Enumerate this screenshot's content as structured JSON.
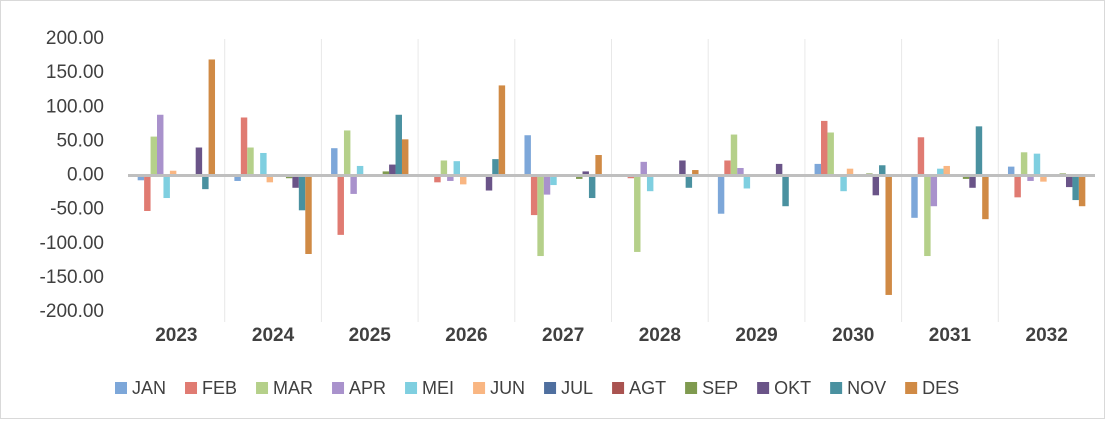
{
  "chart_data": {
    "type": "bar",
    "categories": [
      "2023",
      "2024",
      "2025",
      "2026",
      "2027",
      "2028",
      "2029",
      "2030",
      "2031",
      "2032"
    ],
    "series": [
      {
        "name": "JAN",
        "color": "#7da7d9",
        "values": [
          -7,
          -8,
          40,
          0,
          59,
          0,
          -56,
          17,
          -62,
          13
        ]
      },
      {
        "name": "FEB",
        "color": "#e07b72",
        "values": [
          -52,
          85,
          -87,
          -10,
          -58,
          -4,
          22,
          80,
          56,
          -32
        ]
      },
      {
        "name": "MAR",
        "color": "#b5d08a",
        "values": [
          57,
          41,
          66,
          22,
          -118,
          -112,
          60,
          63,
          -118,
          34
        ]
      },
      {
        "name": "APR",
        "color": "#a992cc",
        "values": [
          89,
          0,
          -27,
          -8,
          -28,
          20,
          11,
          0,
          -45,
          -8
        ]
      },
      {
        "name": "MEI",
        "color": "#7fcfe0",
        "values": [
          -33,
          33,
          14,
          21,
          -14,
          -23,
          -19,
          -23,
          10,
          32
        ]
      },
      {
        "name": "JUN",
        "color": "#f9b682",
        "values": [
          7,
          -10,
          0,
          -13,
          0,
          0,
          0,
          10,
          14,
          -9
        ]
      },
      {
        "name": "JUL",
        "color": "#4f6f9f",
        "values": [
          0,
          0,
          0,
          0,
          0,
          0,
          0,
          0,
          0,
          0
        ]
      },
      {
        "name": "AGT",
        "color": "#a95350",
        "values": [
          0,
          0,
          0,
          0,
          0,
          0,
          0,
          0,
          0,
          0
        ]
      },
      {
        "name": "SEP",
        "color": "#7f9a4f",
        "values": [
          0,
          -4,
          6,
          0,
          -5,
          0,
          0,
          3,
          -5,
          3
        ]
      },
      {
        "name": "OKT",
        "color": "#6a5488",
        "values": [
          41,
          -18,
          16,
          -22,
          6,
          22,
          17,
          -29,
          -18,
          -17
        ]
      },
      {
        "name": "NOV",
        "color": "#4a91a0",
        "values": [
          -20,
          -51,
          89,
          24,
          -33,
          -18,
          -45,
          15,
          72,
          -36
        ]
      },
      {
        "name": "DES",
        "color": "#d08a45",
        "values": [
          170,
          -115,
          53,
          132,
          30,
          8,
          0,
          -175,
          -64,
          -45
        ]
      }
    ],
    "ylim": [
      -200,
      200
    ],
    "yticks": [
      {
        "value": -200,
        "label": "-200.00"
      },
      {
        "value": -150,
        "label": "-150.00"
      },
      {
        "value": -100,
        "label": "-100.00"
      },
      {
        "value": -50,
        "label": "-50.00"
      },
      {
        "value": 0,
        "label": "0.00"
      },
      {
        "value": 50,
        "label": "50.00"
      },
      {
        "value": 100,
        "label": "100.00"
      },
      {
        "value": 150,
        "label": "150.00"
      },
      {
        "value": 200,
        "label": "200.00"
      }
    ],
    "grid": false,
    "legend": "bottom"
  }
}
